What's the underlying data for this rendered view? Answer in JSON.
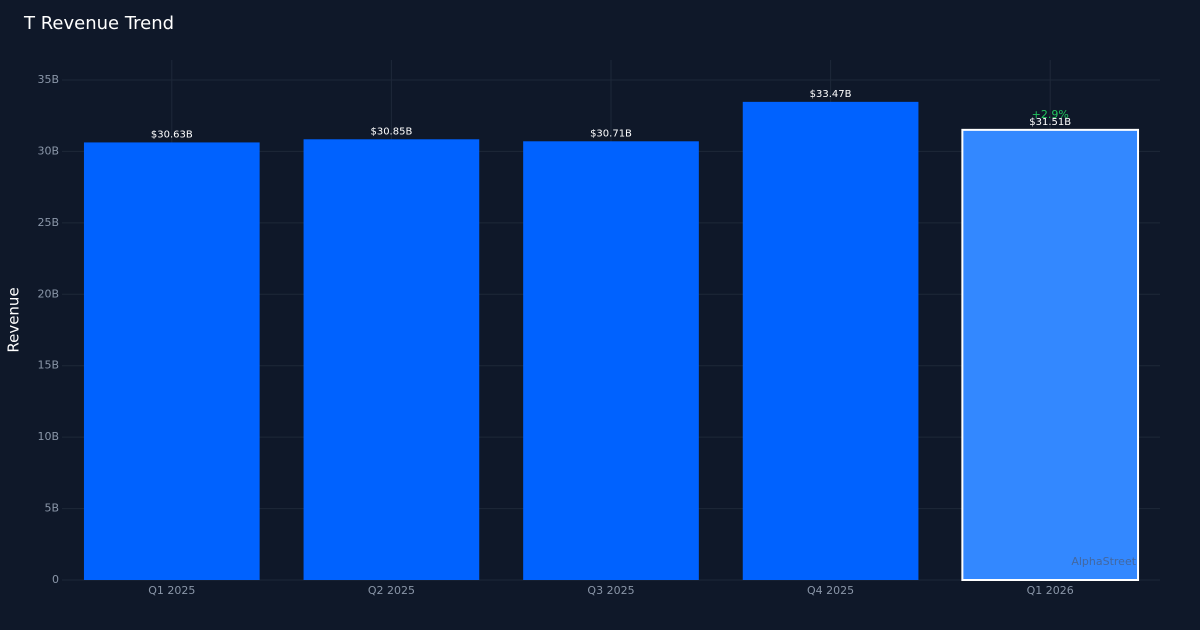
{
  "chart_data": {
    "type": "bar",
    "title": "T Revenue Trend",
    "y_label": "Revenue",
    "categories": [
      "Q1 2025",
      "Q2 2025",
      "Q3 2025",
      "Q4 2025",
      "Q1 2026"
    ],
    "values": [
      30.63,
      30.85,
      30.71,
      33.47,
      31.51
    ],
    "value_labels": [
      "$30.63B",
      "$30.85B",
      "$30.71B",
      "$33.47B",
      "$31.51B"
    ],
    "colors": [
      "#0062ff",
      "#0062ff",
      "#0062ff",
      "#0062ff",
      "#3388ff"
    ],
    "ylim": [
      0,
      36.4
    ],
    "yticks": [
      0,
      {
        "value": 5,
        "label": "5B"
      },
      {
        "value": 10,
        "label": "10B"
      },
      {
        "value": 15,
        "label": "15B"
      },
      {
        "value": 20,
        "label": "20B"
      },
      {
        "value": 25,
        "label": "25B"
      },
      {
        "value": 30,
        "label": "30B"
      },
      {
        "value": 35,
        "label": "35B"
      }
    ],
    "grid": true,
    "annotation": "+2.9%",
    "watermark": "AlphaStreet"
  }
}
